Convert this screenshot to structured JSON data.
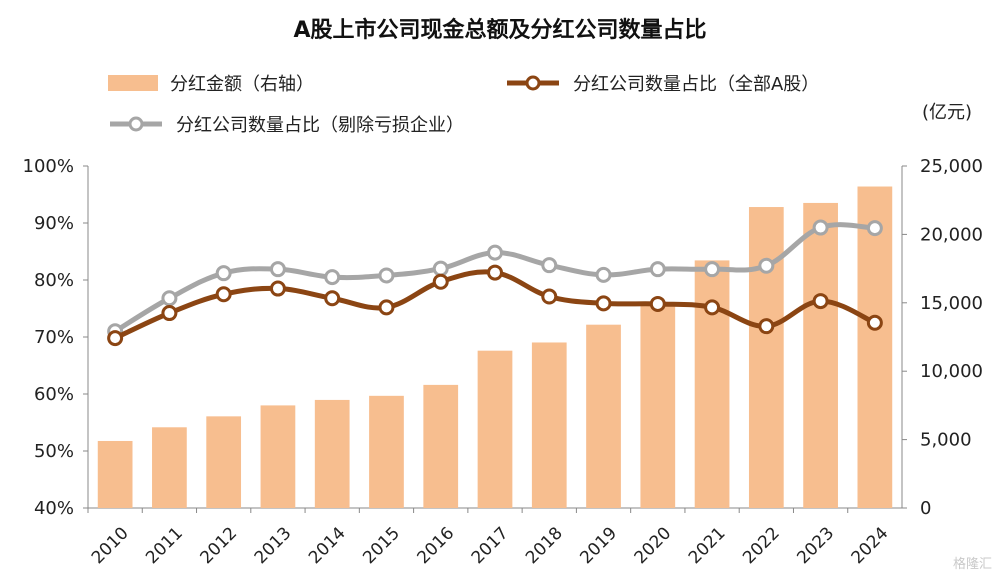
{
  "chart_data": {
    "type": "bar",
    "title": "A股上市公司现金总额及分红公司数量占比",
    "categories": [
      "2010",
      "2011",
      "2012",
      "2013",
      "2014",
      "2015",
      "2016",
      "2017",
      "2018",
      "2019",
      "2020",
      "2021",
      "2022",
      "2023",
      "2024"
    ],
    "series": [
      {
        "name": "分红金额（右轴）",
        "type": "bar",
        "axis": "right",
        "values": [
          4900,
          5900,
          6700,
          7500,
          7900,
          8200,
          9000,
          11500,
          12100,
          13400,
          15000,
          18100,
          22000,
          22300,
          23500
        ],
        "color": "#F7BE8F"
      },
      {
        "name": "分红公司数量占比（全部A股）",
        "type": "line",
        "axis": "left",
        "values": [
          0.698,
          0.742,
          0.775,
          0.785,
          0.768,
          0.752,
          0.797,
          0.813,
          0.771,
          0.759,
          0.758,
          0.752,
          0.719,
          0.763,
          0.725
        ],
        "color": "#8B4513"
      },
      {
        "name": "分红公司数量占比（剔除亏损企业）",
        "type": "line",
        "axis": "left",
        "values": [
          0.71,
          0.768,
          0.812,
          0.819,
          0.805,
          0.808,
          0.82,
          0.848,
          0.826,
          0.809,
          0.819,
          0.819,
          0.825,
          0.892,
          0.891
        ],
        "color": "#A6A6A6"
      }
    ],
    "y_left": {
      "ylim": [
        0.4,
        1.0
      ],
      "ticks": [
        "40%",
        "50%",
        "60%",
        "70%",
        "80%",
        "90%",
        "100%"
      ]
    },
    "y_right": {
      "ylim": [
        0,
        25000
      ],
      "ticks": [
        "0",
        "5,000",
        "10,000",
        "15,000",
        "20,000",
        "25,000"
      ],
      "unit": "(亿元)"
    },
    "grid": false,
    "legend_position": "top"
  },
  "watermark": "格隆汇"
}
